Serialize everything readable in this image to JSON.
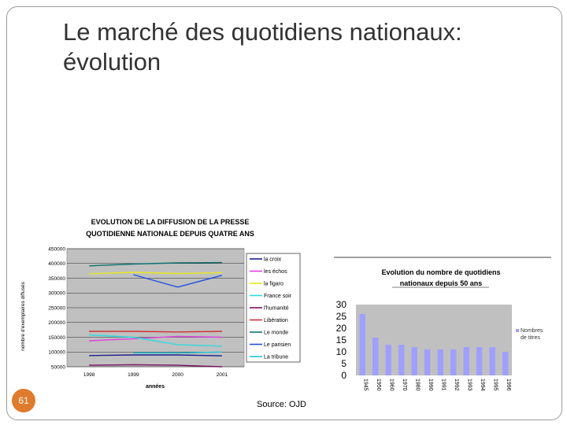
{
  "slide": {
    "title_line1": "Le marché des quotidiens nationaux:",
    "title_line2": "évolution",
    "page_number": "61",
    "source": "Source: OJD",
    "accent_color": "#e07a2c"
  },
  "chart_data": [
    {
      "type": "line",
      "title_line1": "EVOLUTION DE LA DIFFUSION DE LA PRESSE",
      "title_line2": "QUOTIDIENNE NATIONALE DEPUIS QUATRE ANS",
      "xlabel": "années",
      "ylabel": "nombre d'exemplaires diffusés",
      "x": [
        "1998",
        "1999",
        "2000",
        "2001"
      ],
      "ylim": [
        50000,
        450000
      ],
      "yticks": [
        "450000",
        "400000",
        "350000",
        "300000",
        "250000",
        "200000",
        "150000",
        "100000",
        "50000"
      ],
      "grid": true,
      "legend_position": "right",
      "series": [
        {
          "name": "la croix",
          "color": "#1f1f8f",
          "values": [
            88000,
            90000,
            90000,
            87000
          ]
        },
        {
          "name": "les échos",
          "color": "#e040e0",
          "values": [
            138000,
            145000,
            153000,
            150000
          ]
        },
        {
          "name": "la figaro",
          "color": "#e8e820",
          "values": [
            365000,
            370000,
            366000,
            369000
          ]
        },
        {
          "name": "France soir",
          "color": "#30d8e0",
          "values": [
            158000,
            150000,
            125000,
            120000
          ]
        },
        {
          "name": "l'humanité",
          "color": "#7a1060",
          "values": [
            55000,
            57000,
            55000,
            50000
          ]
        },
        {
          "name": "Libération",
          "color": "#d03030",
          "values": [
            170000,
            170000,
            168000,
            170000
          ]
        },
        {
          "name": "Le monde",
          "color": "#107070",
          "values": [
            392000,
            398000,
            402000,
            403000
          ]
        },
        {
          "name": "Le parisien",
          "color": "#2050e0",
          "values": [
            null,
            362000,
            320000,
            360000
          ]
        },
        {
          "name": "La tribune",
          "color": "#20c8d8",
          "values": [
            null,
            97000,
            97000,
            100000
          ]
        }
      ]
    },
    {
      "type": "bar",
      "title_line1": "Evolution du nombre de quotidiens",
      "title_line2": "nationaux depuis 50 ans",
      "categories": [
        "1945",
        "1950",
        "1960",
        "1970",
        "1980",
        "1990",
        "1991",
        "1992",
        "1993",
        "1994",
        "1995",
        "1996"
      ],
      "values": [
        26,
        16,
        13,
        13,
        12,
        11,
        11,
        11,
        12,
        12,
        12,
        10
      ],
      "ylim": [
        0,
        30
      ],
      "yticks": [
        "30",
        "25",
        "20",
        "15",
        "10",
        "5",
        "0"
      ],
      "legend_label_line1": "Nombres",
      "legend_label_line2": "de titres",
      "legend_position": "right",
      "bar_color": "#9f9fff",
      "plot_bg": "#c0c0c0"
    }
  ]
}
